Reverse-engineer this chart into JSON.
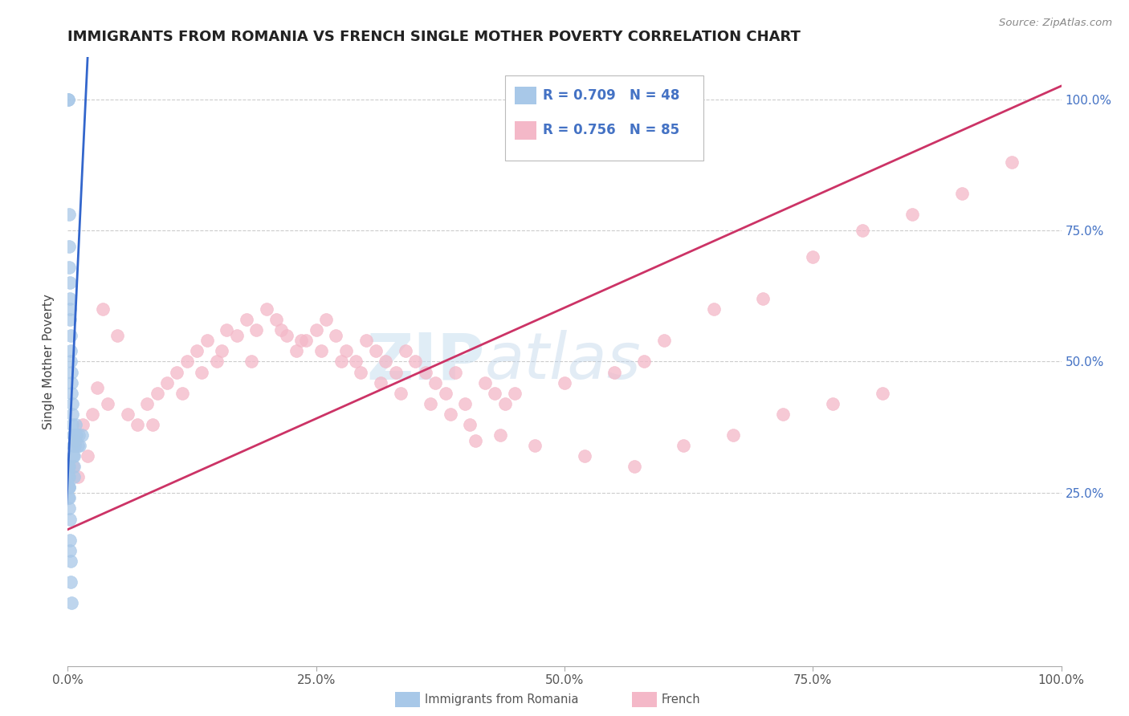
{
  "title": "IMMIGRANTS FROM ROMANIA VS FRENCH SINGLE MOTHER POVERTY CORRELATION CHART",
  "source": "Source: ZipAtlas.com",
  "ylabel": "Single Mother Poverty",
  "blue_label": "Immigrants from Romania",
  "pink_label": "French",
  "blue_R": 0.709,
  "blue_N": 48,
  "pink_R": 0.756,
  "pink_N": 85,
  "blue_color": "#a8c8e8",
  "pink_color": "#f4b8c8",
  "blue_line_color": "#3366cc",
  "pink_line_color": "#cc3366",
  "watermark_zip": "ZIP",
  "watermark_atlas": "atlas",
  "xlim": [
    0,
    100
  ],
  "ylim": [
    -8,
    108
  ],
  "blue_line_x0": 0.0,
  "blue_line_y0": 28.0,
  "blue_line_x1": 1.8,
  "blue_line_y1": 100.0,
  "pink_line_x0": 0.0,
  "pink_line_y0": 18.0,
  "pink_line_x1": 97.0,
  "pink_line_y1": 100.0,
  "blue_scatter_x": [
    0.05,
    0.08,
    0.1,
    0.12,
    0.15,
    0.18,
    0.2,
    0.22,
    0.25,
    0.28,
    0.3,
    0.32,
    0.35,
    0.38,
    0.4,
    0.42,
    0.45,
    0.48,
    0.5,
    0.52,
    0.55,
    0.58,
    0.6,
    0.65,
    0.7,
    0.75,
    0.8,
    0.9,
    1.0,
    1.1,
    1.2,
    1.4,
    0.04,
    0.06,
    0.08,
    0.09,
    0.1,
    0.11,
    0.13,
    0.14,
    0.16,
    0.17,
    0.19,
    0.22,
    0.24,
    0.27,
    0.31,
    0.36
  ],
  "blue_scatter_y": [
    100.0,
    100.0,
    78.0,
    72.0,
    68.0,
    65.0,
    62.0,
    60.0,
    58.0,
    55.0,
    52.0,
    50.0,
    48.0,
    46.0,
    44.0,
    42.0,
    40.0,
    38.0,
    36.0,
    34.0,
    32.0,
    30.0,
    28.0,
    32.0,
    34.0,
    36.0,
    38.0,
    36.0,
    34.0,
    36.0,
    34.0,
    36.0,
    30.0,
    28.0,
    26.0,
    24.0,
    22.0,
    28.0,
    26.0,
    30.0,
    24.0,
    26.0,
    20.0,
    16.0,
    14.0,
    12.0,
    8.0,
    4.0
  ],
  "pink_scatter_x": [
    0.5,
    1.0,
    2.0,
    3.5,
    5.0,
    7.0,
    8.0,
    9.0,
    10.0,
    11.0,
    12.0,
    13.0,
    14.0,
    15.0,
    16.0,
    17.0,
    18.0,
    19.0,
    20.0,
    21.0,
    22.0,
    23.0,
    24.0,
    25.0,
    26.0,
    27.0,
    28.0,
    29.0,
    30.0,
    31.0,
    32.0,
    33.0,
    34.0,
    35.0,
    36.0,
    37.0,
    38.0,
    39.0,
    40.0,
    41.0,
    42.0,
    43.0,
    44.0,
    45.0,
    50.0,
    55.0,
    58.0,
    60.0,
    65.0,
    70.0,
    75.0,
    80.0,
    85.0,
    90.0,
    95.0,
    0.8,
    1.5,
    2.5,
    3.0,
    4.0,
    6.0,
    8.5,
    11.5,
    13.5,
    15.5,
    18.5,
    21.5,
    23.5,
    25.5,
    27.5,
    29.5,
    31.5,
    33.5,
    36.5,
    38.5,
    40.5,
    43.5,
    47.0,
    52.0,
    57.0,
    62.0,
    67.0,
    72.0,
    77.0,
    82.0
  ],
  "pink_scatter_y": [
    30.0,
    28.0,
    32.0,
    60.0,
    55.0,
    38.0,
    42.0,
    44.0,
    46.0,
    48.0,
    50.0,
    52.0,
    54.0,
    50.0,
    56.0,
    55.0,
    58.0,
    56.0,
    60.0,
    58.0,
    55.0,
    52.0,
    54.0,
    56.0,
    58.0,
    55.0,
    52.0,
    50.0,
    54.0,
    52.0,
    50.0,
    48.0,
    52.0,
    50.0,
    48.0,
    46.0,
    44.0,
    48.0,
    42.0,
    35.0,
    46.0,
    44.0,
    42.0,
    44.0,
    46.0,
    48.0,
    50.0,
    54.0,
    60.0,
    62.0,
    70.0,
    75.0,
    78.0,
    82.0,
    88.0,
    35.0,
    38.0,
    40.0,
    45.0,
    42.0,
    40.0,
    38.0,
    44.0,
    48.0,
    52.0,
    50.0,
    56.0,
    54.0,
    52.0,
    50.0,
    48.0,
    46.0,
    44.0,
    42.0,
    40.0,
    38.0,
    36.0,
    34.0,
    32.0,
    30.0,
    34.0,
    36.0,
    40.0,
    42.0,
    44.0
  ]
}
